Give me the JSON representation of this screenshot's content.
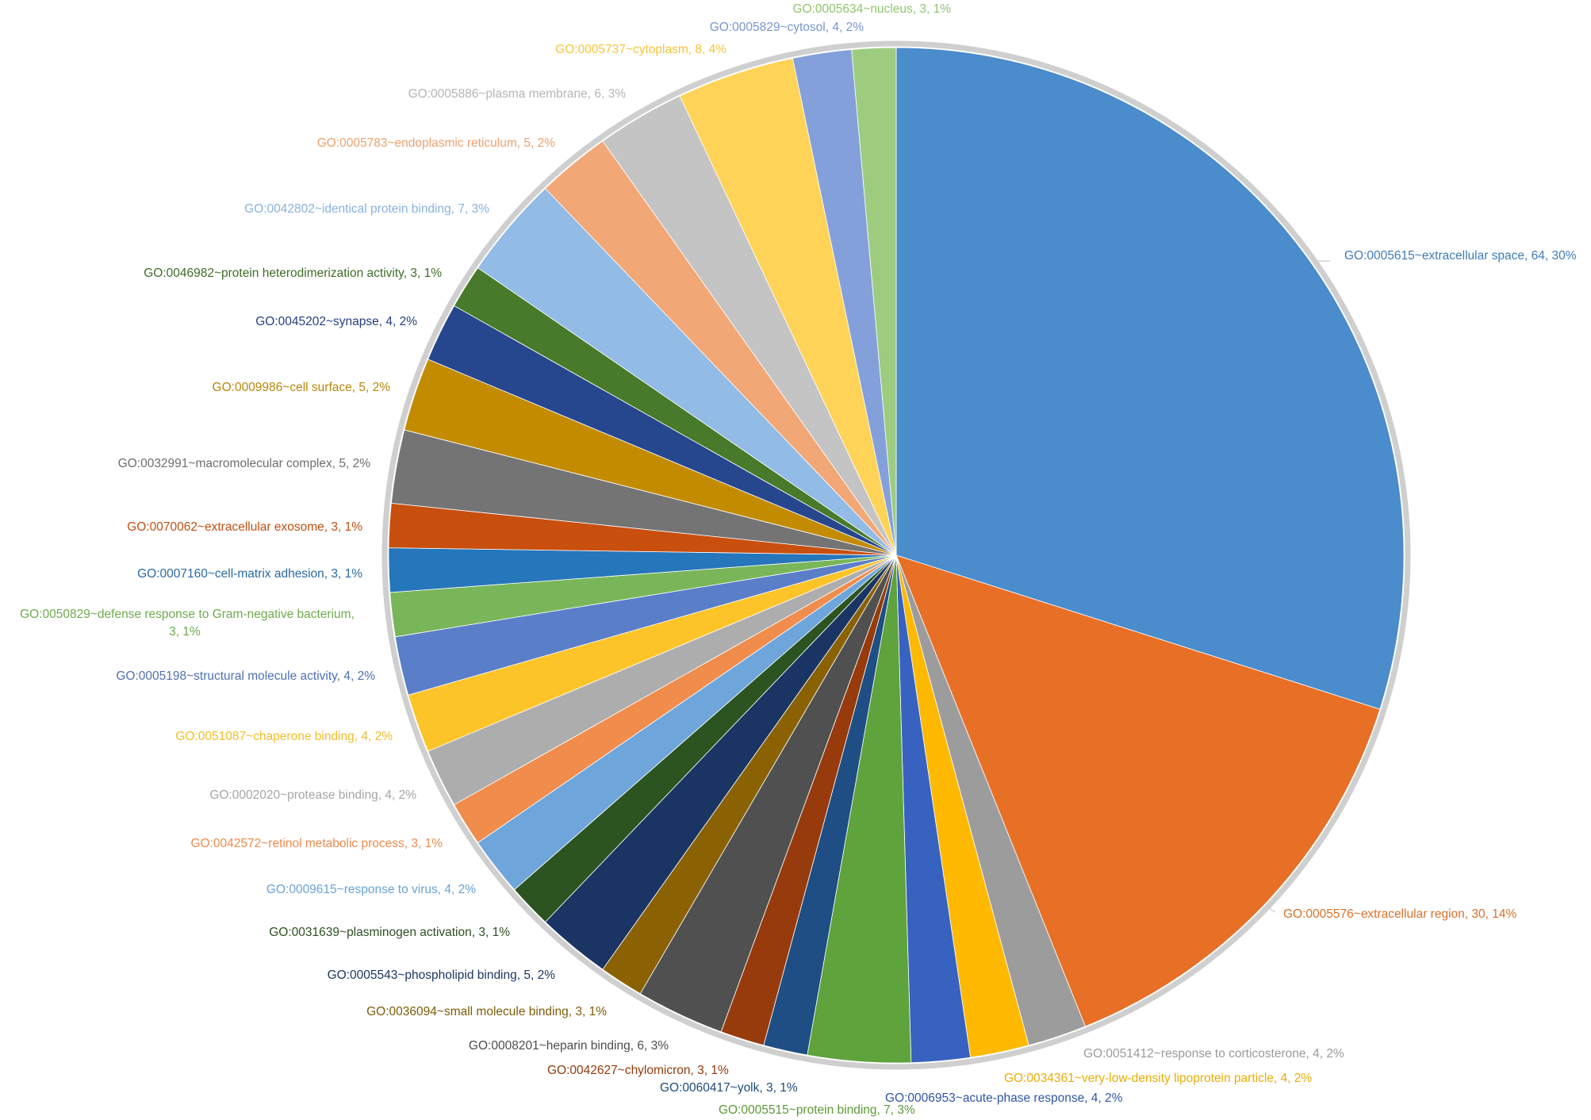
{
  "chart_data": {
    "type": "pie",
    "title": "",
    "slices": [
      {
        "label": "GO:0005615~extracellular space, 64, 30%",
        "value": 64,
        "color": "#4a8ccc",
        "text_color": "#3f7bb5"
      },
      {
        "label": "GO:0005576~extracellular region, 30, 14%",
        "value": 30,
        "color": "#e86f26",
        "text_color": "#d9712a"
      },
      {
        "label": "GO:0051412~response to corticosterone, 4, 2%",
        "value": 4,
        "color": "#9c9c9c",
        "text_color": "#9a9a9a"
      },
      {
        "label": "GO:0034361~very-low-density lipoprotein particle, 4, 2%",
        "value": 4,
        "color": "#ffb900",
        "text_color": "#e9ad05"
      },
      {
        "label": "GO:0006953~acute-phase response, 4, 2%",
        "value": 4,
        "color": "#3862c0",
        "text_color": "#2f55a9"
      },
      {
        "label": "GO:0005515~protein binding, 7, 3%",
        "value": 7,
        "color": "#5ea33b",
        "text_color": "#5a9b37"
      },
      {
        "label": "GO:0060417~yolk, 3, 1%",
        "value": 3,
        "color": "#1e4e83",
        "text_color": "#1f4b7c"
      },
      {
        "label": "GO:0042627~chylomicron, 3, 1%",
        "value": 3,
        "color": "#973b0c",
        "text_color": "#923a0d"
      },
      {
        "label": "GO:0008201~heparin binding, 6, 3%",
        "value": 6,
        "color": "#505050",
        "text_color": "#4d4d4d"
      },
      {
        "label": "GO:0036094~small molecule binding, 3, 1%",
        "value": 3,
        "color": "#8a6203",
        "text_color": "#7f5b06"
      },
      {
        "label": "GO:0005543~phospholipid binding, 5, 2%",
        "value": 5,
        "color": "#1a3564",
        "text_color": "#1c3561"
      },
      {
        "label": "GO:0031639~plasminogen activation, 3, 1%",
        "value": 3,
        "color": "#2c5421",
        "text_color": "#2c5022"
      },
      {
        "label": "GO:0009615~response to virus, 4, 2%",
        "value": 4,
        "color": "#6ea6dc",
        "text_color": "#6aa3d8"
      },
      {
        "label": "GO:0042572~retinol metabolic process, 3, 1%",
        "value": 3,
        "color": "#f08c4c",
        "text_color": "#ee8a4b"
      },
      {
        "label": "GO:0002020~protease binding, 4, 2%",
        "value": 4,
        "color": "#adadad",
        "text_color": "#a6a6a6"
      },
      {
        "label": "GO:0051087~chaperone binding, 4, 2%",
        "value": 4,
        "color": "#fdc42a",
        "text_color": "#f2bd26"
      },
      {
        "label": "GO:0005198~structural molecule activity, 4, 2%",
        "value": 4,
        "color": "#5b7ec9",
        "text_color": "#4f70b5"
      },
      {
        "label": "GO:0050829~defense response to Gram-negative bacterium, 3, 1%",
        "value": 3,
        "color": "#79b659",
        "text_color": "#6eab4d",
        "lines": [
          "GO:0050829~defense response to Gram-negative bacterium,",
          "3, 1%"
        ]
      },
      {
        "label": "GO:0007160~cell-matrix adhesion, 3, 1%",
        "value": 3,
        "color": "#2676bb",
        "text_color": "#2a6aa6"
      },
      {
        "label": "GO:0070062~extracellular exosome, 3, 1%",
        "value": 3,
        "color": "#c84f0e",
        "text_color": "#c24f12"
      },
      {
        "label": "GO:0032991~macromolecular complex, 5, 2%",
        "value": 5,
        "color": "#747474",
        "text_color": "#6e6e6e"
      },
      {
        "label": "GO:0009986~cell surface, 5, 2%",
        "value": 5,
        "color": "#c38b00",
        "text_color": "#b8870b"
      },
      {
        "label": "GO:0045202~synapse, 4, 2%",
        "value": 4,
        "color": "#26478e",
        "text_color": "#253f82"
      },
      {
        "label": "GO:0046982~protein heterodimerization activity, 3, 1%",
        "value": 3,
        "color": "#477a2a",
        "text_color": "#3f6c28"
      },
      {
        "label": "GO:0042802~identical protein binding, 7, 3%",
        "value": 7,
        "color": "#92bbe5",
        "text_color": "#88b2de"
      },
      {
        "label": "GO:0005783~endoplasmic reticulum, 5, 2%",
        "value": 5,
        "color": "#f2a776",
        "text_color": "#eda16d"
      },
      {
        "label": "GO:0005886~plasma membrane, 6, 3%",
        "value": 6,
        "color": "#c4c4c4",
        "text_color": "#b5b5b5"
      },
      {
        "label": "GO:0005737~cytoplasm, 8, 4%",
        "value": 8,
        "color": "#ffd357",
        "text_color": "#f7c53b"
      },
      {
        "label": "GO:0005829~cytosol, 4, 2%",
        "value": 4,
        "color": "#83a0da",
        "text_color": "#7896d1"
      },
      {
        "label": "GO:0005634~nucleus, 3, 1%",
        "value": 3,
        "color": "#9dcc7f",
        "text_color": "#8fc66a"
      }
    ]
  }
}
